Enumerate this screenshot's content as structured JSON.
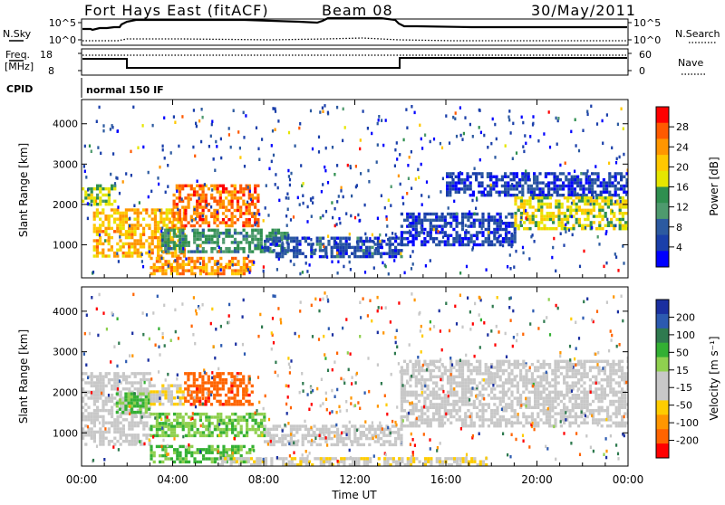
{
  "header": {
    "title": "Fort Hays East (fitACF)",
    "beam": "Beam 08",
    "date": "30/May/2011"
  },
  "status_panels": {
    "nsky_label": "N.Sky",
    "nsearch_label": "N.Search",
    "freq_label_1": "Freq.",
    "freq_label_2": "[MHz]",
    "nave_label": "Nave",
    "cpid_label": "CPID",
    "cpid_value": "normal 150 IF",
    "noise_left_ticks": [
      "10^5",
      "10^0"
    ],
    "noise_right_ticks": [
      "10^5",
      "10^0"
    ],
    "freq_ticks": [
      "18",
      "8"
    ],
    "nave_ticks": [
      "60",
      "0"
    ]
  },
  "power_colorbar": {
    "label": "Power [dB]",
    "ticks": [
      "28",
      "24",
      "20",
      "16",
      "12",
      "8",
      "4"
    ],
    "colors": [
      "#ff0000",
      "#ff5a00",
      "#ff9600",
      "#ffc800",
      "#e6e600",
      "#2f8f4f",
      "#4e9a6e",
      "#2c5aa0",
      "#1a3faa",
      "#0000ff"
    ]
  },
  "velocity_colorbar": {
    "label": "Velocity [m s⁻¹]",
    "ticks": [
      "200",
      "100",
      "50",
      "15",
      "-15",
      "-50",
      "-100",
      "-200"
    ],
    "colors": [
      "#1a2fa0",
      "#2c5ab0",
      "#2f7a4f",
      "#33b033",
      "#8fd04f",
      "#c8c8c8",
      "#c8c8c8",
      "#ffcc00",
      "#ff9600",
      "#ff6400",
      "#ff0000"
    ]
  },
  "axes": {
    "ylabel": "Slant Range [km]",
    "xlabel": "Time UT",
    "yticks": [
      "4000",
      "3000",
      "2000",
      "1000"
    ],
    "xticks": [
      "00:00",
      "04:00",
      "08:00",
      "12:00",
      "16:00",
      "20:00",
      "00:00"
    ]
  },
  "chart_data": [
    {
      "type": "heatmap",
      "title": "",
      "xlabel": "",
      "ylabel": "Slant Range [km]",
      "xlim": [
        0,
        24
      ],
      "ylim": [
        180,
        4600
      ],
      "yticks": [
        1000,
        2000,
        3000,
        4000
      ],
      "color_scale": {
        "label": "Power [dB]",
        "range": [
          0,
          32
        ]
      },
      "bands": [
        {
          "x_start": 0.0,
          "x_end": 1.5,
          "range_start": 2000,
          "range_end": 2500,
          "value": 16
        },
        {
          "x_start": 0.5,
          "x_end": 4.5,
          "range_start": 700,
          "range_end": 1900,
          "value": 22
        },
        {
          "x_start": 3.0,
          "x_end": 7.5,
          "range_start": 250,
          "range_end": 700,
          "value": 24
        },
        {
          "x_start": 4.0,
          "x_end": 7.8,
          "range_start": 1500,
          "range_end": 2500,
          "value": 26
        },
        {
          "x_start": 3.5,
          "x_end": 9.0,
          "range_start": 800,
          "range_end": 1400,
          "value": 12
        },
        {
          "x_start": 8.0,
          "x_end": 14.0,
          "range_start": 700,
          "range_end": 1200,
          "value": 6
        },
        {
          "x_start": 14.0,
          "x_end": 19.0,
          "range_start": 1000,
          "range_end": 1800,
          "value": 5
        },
        {
          "x_start": 16.0,
          "x_end": 24.0,
          "range_start": 2200,
          "range_end": 2800,
          "value": 5
        },
        {
          "x_start": 19.0,
          "x_end": 24.0,
          "range_start": 1400,
          "range_end": 2200,
          "value": 18
        }
      ]
    },
    {
      "type": "heatmap",
      "title": "",
      "xlabel": "Time UT",
      "ylabel": "Slant Range [km]",
      "xlim": [
        0,
        24
      ],
      "ylim": [
        180,
        4600
      ],
      "yticks": [
        1000,
        2000,
        3000,
        4000
      ],
      "color_scale": {
        "label": "Velocity [m s⁻¹]",
        "range": [
          -200,
          200
        ]
      },
      "bands": [
        {
          "x_start": 0.0,
          "x_end": 3.0,
          "range_start": 700,
          "range_end": 2500,
          "value": 0
        },
        {
          "x_start": 1.5,
          "x_end": 3.0,
          "range_start": 1500,
          "range_end": 2000,
          "value": 60
        },
        {
          "x_start": 3.0,
          "x_end": 4.5,
          "range_start": 1700,
          "range_end": 2200,
          "value": -50
        },
        {
          "x_start": 4.5,
          "x_end": 7.5,
          "range_start": 1700,
          "range_end": 2500,
          "value": -150
        },
        {
          "x_start": 3.0,
          "x_end": 8.0,
          "range_start": 900,
          "range_end": 1500,
          "value": 50
        },
        {
          "x_start": 3.0,
          "x_end": 7.5,
          "range_start": 300,
          "range_end": 700,
          "value": 60
        },
        {
          "x_start": 8.0,
          "x_end": 14.0,
          "range_start": 700,
          "range_end": 1200,
          "value": 0
        },
        {
          "x_start": 6.0,
          "x_end": 18.0,
          "range_start": 200,
          "range_end": 400,
          "value": -50
        },
        {
          "x_start": 14.0,
          "x_end": 24.0,
          "range_start": 1200,
          "range_end": 2800,
          "value": 0
        }
      ]
    }
  ]
}
